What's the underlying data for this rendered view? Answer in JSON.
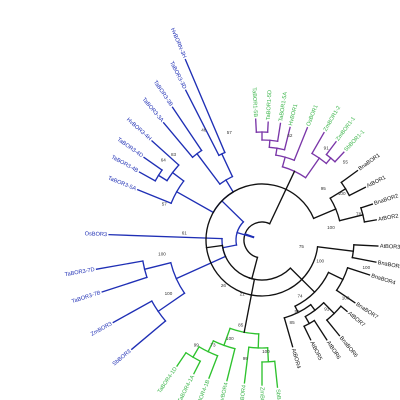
{
  "colors": {
    "blue": "#1f2fb5",
    "purple": "#7a36a8",
    "green": "#2ec22e",
    "black": "#111111",
    "leaf_green": "#3bb54a"
  },
  "leaves": [
    {
      "label": "HvBORN-3H",
      "color": "blue"
    },
    {
      "label": "TaBOR3-3D",
      "color": "blue"
    },
    {
      "label": "TaBOR3-3B",
      "color": "blue"
    },
    {
      "label": "TaBOR3-3A",
      "color": "blue"
    },
    {
      "label": "HvBOR3-4H",
      "color": "blue"
    },
    {
      "label": "TaBOR3-4D",
      "color": "blue"
    },
    {
      "label": "TaBOR3-4B",
      "color": "blue"
    },
    {
      "label": "TaBOR3-5A",
      "color": "blue"
    },
    {
      "label": "OsBOR3",
      "color": "blue"
    },
    {
      "label": "TaBOR3-7D",
      "color": "blue"
    },
    {
      "label": "TaBOR3-7B",
      "color": "blue"
    },
    {
      "label": "ZmBOR3",
      "color": "blue"
    },
    {
      "label": "SbBOR3",
      "color": "blue"
    },
    {
      "label": "TaBOR4-1D",
      "color": "leaf_green"
    },
    {
      "label": "TaBOR4-1A",
      "color": "leaf_green"
    },
    {
      "label": "TaBOR4-1B",
      "color": "leaf_green"
    },
    {
      "label": "HvBOR4",
      "color": "leaf_green"
    },
    {
      "label": "OsBOR4",
      "color": "leaf_green"
    },
    {
      "label": "ZmBOR4",
      "color": "leaf_green"
    },
    {
      "label": "SbBOR4",
      "color": "leaf_green"
    },
    {
      "label": "AtBOR4",
      "color": "black"
    },
    {
      "label": "AtBOR5",
      "color": "black"
    },
    {
      "label": "AtBOR6",
      "color": "black"
    },
    {
      "label": "BnaBOR6",
      "color": "black"
    },
    {
      "label": "AtBOR7",
      "color": "black"
    },
    {
      "label": "BnaBOR7",
      "color": "black"
    },
    {
      "label": "BnaBOR4",
      "color": "black"
    },
    {
      "label": "BnaBOR5",
      "color": "black"
    },
    {
      "label": "AtBOR3",
      "color": "black"
    },
    {
      "label": "AtBOR2",
      "color": "black"
    },
    {
      "label": "BnaBOR2",
      "color": "black"
    },
    {
      "label": "AtBOR1",
      "color": "black"
    },
    {
      "label": "BnaBOR1",
      "color": "black"
    },
    {
      "label": "SbBOR1-1",
      "color": "leaf_green"
    },
    {
      "label": "ZmBOR1-1",
      "color": "leaf_green"
    },
    {
      "label": "ZmBOR1-2",
      "color": "leaf_green"
    },
    {
      "label": "OsBOR1",
      "color": "leaf_green"
    },
    {
      "label": "HvBOR1",
      "color": "leaf_green"
    },
    {
      "label": "TaBOR1-5A",
      "color": "leaf_green"
    },
    {
      "label": "TaBOR1-5D",
      "color": "leaf_green"
    },
    {
      "label": "TaBOR1-5B",
      "color": "leaf_green"
    }
  ],
  "bootstrap": [
    "57",
    "46",
    "83",
    "64",
    "57",
    "61",
    "100",
    "100",
    "26",
    "21",
    "99",
    "73",
    "100",
    "99",
    "85",
    "100",
    "85",
    "50",
    "74",
    "91",
    "100",
    "100",
    "100",
    "100",
    "75",
    "78",
    "100",
    "95",
    "55",
    "91",
    "62"
  ]
}
